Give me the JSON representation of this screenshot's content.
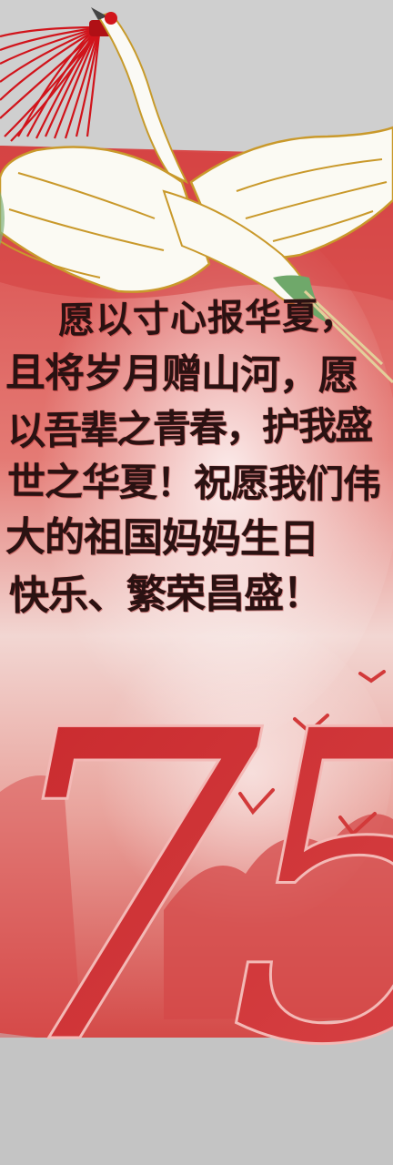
{
  "image": {
    "subject": "handmade red watercolor bookmark with a crane and the number 75",
    "colors": {
      "background": "#cfcfcf",
      "card_red": "#d94a4a",
      "deep_red": "#c52428",
      "tassel": "#d1141b",
      "ink": "#2a1212"
    },
    "message": {
      "lines": [
        "愿以寸心报华夏，",
        "且将岁月赠山河，愿",
        "以吾辈之青春，护我盛",
        "世之华夏！祝愿我们伟",
        "大的祖国妈妈生日",
        "快乐、繁荣昌盛！"
      ]
    },
    "number": "75"
  }
}
